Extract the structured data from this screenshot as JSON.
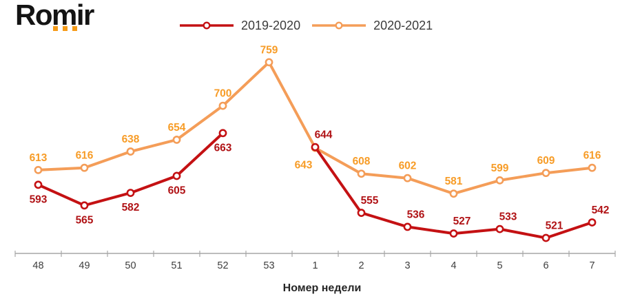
{
  "logo": {
    "text": "Romir",
    "dot_color": "#F59B18"
  },
  "chart_data": {
    "type": "line",
    "title": "",
    "xlabel": "Номер недели",
    "ylabel": "",
    "categories": [
      "48",
      "49",
      "50",
      "51",
      "52",
      "53",
      "1",
      "2",
      "3",
      "4",
      "5",
      "6",
      "7"
    ],
    "ylim": [
      500,
      764
    ],
    "grid": false,
    "legend_position": "top",
    "axis_color": "#A6A6A6",
    "tick_label_color": "#3d3d3d",
    "title_color": "#262626",
    "series": [
      {
        "name": "2019-2020",
        "color": "#C41113",
        "label_color": "#B01215",
        "values": [
          593,
          565,
          582,
          605,
          663,
          null,
          644,
          555,
          536,
          527,
          533,
          521,
          542
        ],
        "label_pos": [
          "b",
          "b",
          "b",
          "b",
          "b",
          null,
          "ar",
          "ar",
          "ar",
          "ar",
          "ar",
          "ar",
          "ar"
        ]
      },
      {
        "name": "2020-2021",
        "color": "#F49D58",
        "label_color": "#F79C27",
        "values": [
          613,
          616,
          638,
          654,
          700,
          759,
          643,
          608,
          602,
          581,
          599,
          609,
          616
        ],
        "label_pos": [
          "a",
          "a",
          "a",
          "a",
          "a",
          "a",
          "bl",
          "a",
          "a",
          "a",
          "a",
          "a",
          "a"
        ]
      }
    ]
  }
}
